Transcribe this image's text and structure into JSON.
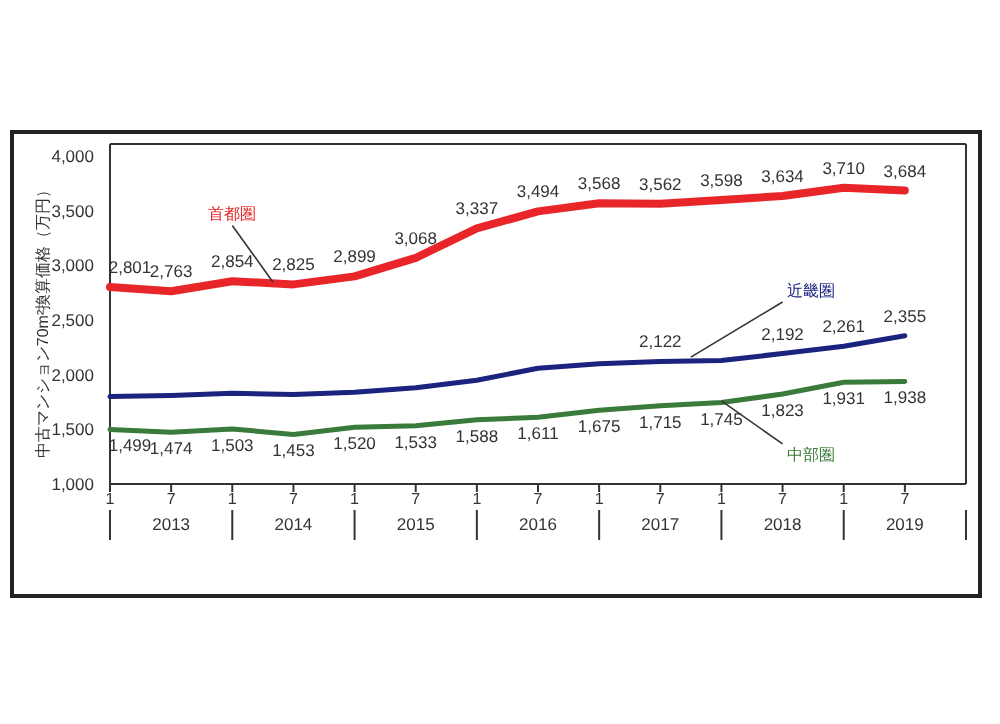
{
  "chart_data": {
    "type": "line",
    "ylabel": "中古マンション70m²換算価格（万円）",
    "x": [
      "2013-01",
      "2013-07",
      "2014-01",
      "2014-07",
      "2015-01",
      "2015-07",
      "2016-01",
      "2016-07",
      "2017-01",
      "2017-07",
      "2018-01",
      "2018-07",
      "2019-01",
      "2019-07"
    ],
    "series": [
      {
        "name": "首都圏",
        "color": "#e8262a",
        "values": [
          2801,
          2763,
          2854,
          2825,
          2899,
          3068,
          3337,
          3494,
          3568,
          3562,
          3598,
          3634,
          3710,
          3684
        ],
        "value_labels": [
          "2,801",
          "2,763",
          "2,854",
          "2,825",
          "2,899",
          "3,068",
          "3,337",
          "3,494",
          "3,568",
          "3,562",
          "3,598",
          "3,634",
          "3,710",
          "3,684"
        ]
      },
      {
        "name": "近畿圏",
        "color": "#1a237e",
        "values": [
          1800,
          1810,
          1830,
          1820,
          1840,
          1880,
          1950,
          2060,
          2100,
          2122,
          2130,
          2192,
          2261,
          2355
        ],
        "value_labels": [
          null,
          null,
          null,
          null,
          null,
          null,
          null,
          null,
          null,
          "2,122",
          null,
          "2,192",
          "2,261",
          "2,355"
        ]
      },
      {
        "name": "中部圏",
        "color": "#3a7a3a",
        "values": [
          1499,
          1474,
          1503,
          1453,
          1520,
          1533,
          1588,
          1611,
          1675,
          1715,
          1745,
          1823,
          1931,
          1938
        ],
        "value_labels": [
          "1,499",
          "1,474",
          "1,503",
          "1,453",
          "1,520",
          "1,533",
          "1,588",
          "1,611",
          "1,675",
          "1,715",
          "1,745",
          "1,823",
          "1,931",
          "1,938"
        ]
      }
    ],
    "xlim": [
      "2013-01",
      "2020-01"
    ],
    "xticks": [
      {
        "value": "2013-01",
        "label": "1"
      },
      {
        "value": "2013-07",
        "label": "7"
      },
      {
        "value": "2014-01",
        "label": "1"
      },
      {
        "value": "2014-07",
        "label": "7"
      },
      {
        "value": "2015-01",
        "label": "1"
      },
      {
        "value": "2015-07",
        "label": "7"
      },
      {
        "value": "2016-01",
        "label": "1"
      },
      {
        "value": "2016-07",
        "label": "7"
      },
      {
        "value": "2017-01",
        "label": "1"
      },
      {
        "value": "2017-07",
        "label": "7"
      },
      {
        "value": "2018-01",
        "label": "1"
      },
      {
        "value": "2018-07",
        "label": "7"
      },
      {
        "value": "2019-01",
        "label": "1"
      },
      {
        "value": "2019-07",
        "label": "7"
      }
    ],
    "annotations": [
      "2013",
      "2014",
      "2015",
      "2016",
      "2017",
      "2018",
      "2019"
    ],
    "ylim": [
      1000,
      4000
    ],
    "yticks": [
      {
        "value": 1000,
        "label": "1,000"
      },
      {
        "value": 1500,
        "label": "1,500"
      },
      {
        "value": 2000,
        "label": "2,000"
      },
      {
        "value": 2500,
        "label": "2,500"
      },
      {
        "value": 3000,
        "label": "3,000"
      },
      {
        "value": 3500,
        "label": "3,500"
      },
      {
        "value": 4000,
        "label": "4,000"
      }
    ],
    "grid": false
  }
}
